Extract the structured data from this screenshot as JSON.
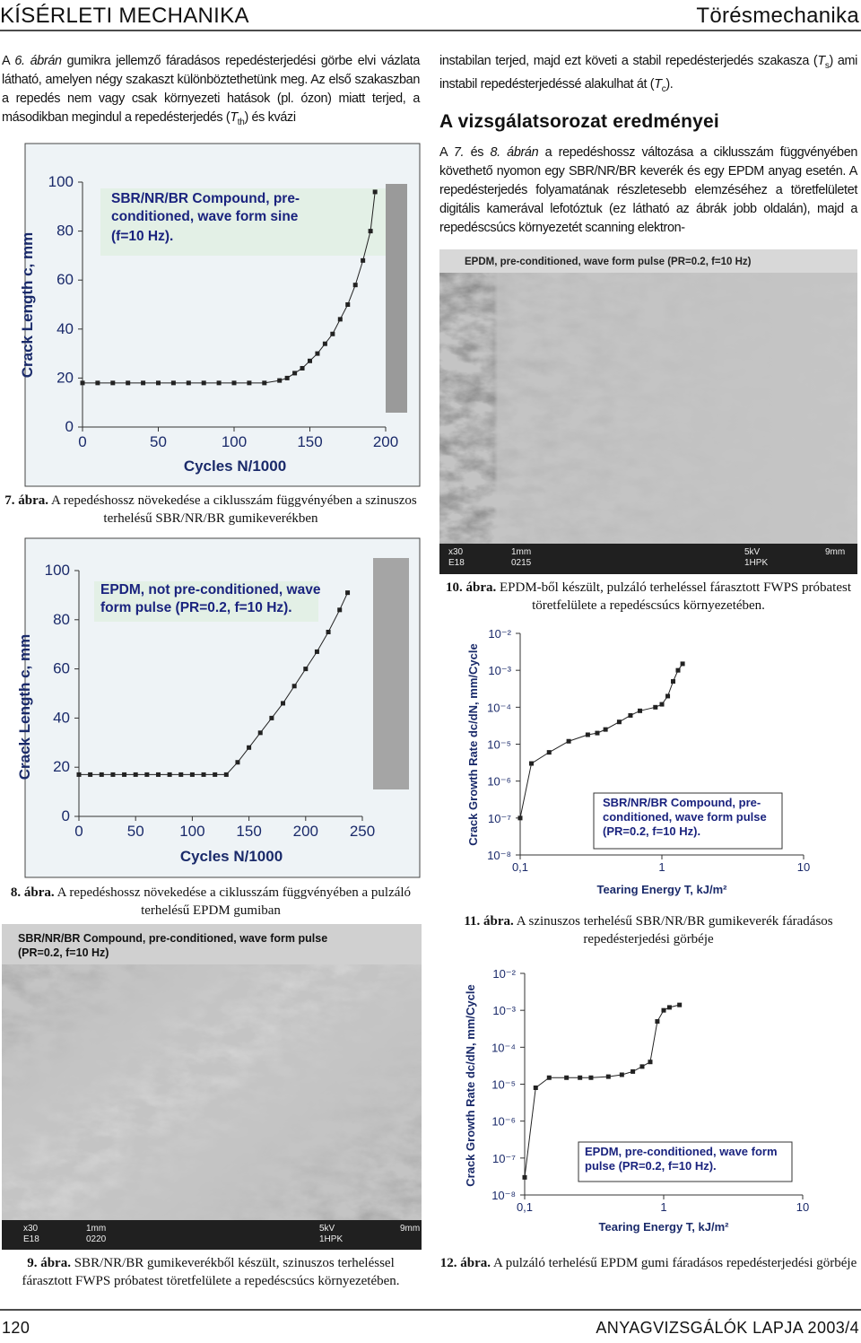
{
  "header": {
    "left": "KÍSÉRLETI MECHANIKA",
    "right": "Törésmechanika"
  },
  "left_text": [
    {
      "t": "A "
    },
    {
      "t": "6. ábrán",
      "s": "i"
    },
    {
      "t": " gumikra jellemző fáradásos repedésterjedési görbe elvi vázlata látható, amelyen négy szakaszt különböztethetünk meg. Az első szakaszban a repedés nem vagy csak környezeti hatások (pl. ózon) miatt terjed, a másodikban megindul a repedésterjedés ("
    },
    {
      "t": "T",
      "s": "i"
    },
    {
      "t": "th",
      "s": "sub"
    },
    {
      "t": ") és kvázi"
    }
  ],
  "right_text_1": [
    {
      "t": "instabilan terjed, majd ezt követi a stabil repedésterjedés szakasza ("
    },
    {
      "t": "T",
      "s": "i"
    },
    {
      "t": "s",
      "s": "sub"
    },
    {
      "t": ") ami instabil repedésterjedéssé alakulhat át ("
    },
    {
      "t": "T",
      "s": "i"
    },
    {
      "t": "c",
      "s": "sub"
    },
    {
      "t": ")."
    }
  ],
  "heading": "A vizsgálatsorozat eredményei",
  "right_text_2": [
    {
      "t": "A "
    },
    {
      "t": "7.",
      "s": "i"
    },
    {
      "t": " és "
    },
    {
      "t": "8. ábrán",
      "s": "i"
    },
    {
      "t": " a repedéshossz változása a ciklusszám függvényében követhető nyomon egy SBR/NR/BR keverék és egy EPDM anyag esetén. A repedésterjedés folyamatának részletesebb elemzéséhez a töretfelületet digitális kamerával lefotóztuk (ez látható az ábrák jobb oldalán), majd a repedéscsúcs környezetét scanning elektron-"
    }
  ],
  "figures": [
    {
      "caption_label": "7. ábra.",
      "caption_text": "A repedéshossz növekedése a ciklusszám függvényében a szinuszos terhelésű SBR/NR/BR gumikeverékben",
      "chart": {
        "type": "line",
        "legend_text": [
          "SBR/NR/BR Compound, pre-",
          "conditioned, wave form sine",
          "(f=10 Hz)."
        ],
        "x_label": "Cycles N/1000",
        "y_label": "Crack Length c, mm",
        "color": "#222222",
        "x": [
          0,
          10,
          20,
          30,
          40,
          50,
          60,
          70,
          80,
          90,
          100,
          110,
          120,
          130,
          135,
          140,
          145,
          150,
          155,
          160,
          165,
          170,
          175,
          180,
          185,
          190,
          193
        ],
        "values": [
          18,
          18,
          18,
          18,
          18,
          18,
          18,
          18,
          18,
          18,
          18,
          18,
          18,
          19,
          20,
          22,
          24,
          27,
          30,
          34,
          38,
          44,
          50,
          58,
          68,
          80,
          96
        ],
        "xlim": [
          0,
          200
        ],
        "ylim": [
          0,
          100
        ],
        "xticks": [
          0,
          50,
          100,
          150,
          200
        ],
        "yticks": [
          0,
          20,
          40,
          60,
          80,
          100
        ]
      }
    },
    {
      "caption_label": "8. ábra.",
      "caption_text": "A repedéshossz növekedése a ciklusszám függvényében a pulzáló terhelésű EPDM gumiban",
      "chart": {
        "type": "line",
        "legend_text": [
          "EPDM, not pre-conditioned, wave",
          "form pulse (PR=0.2, f=10 Hz)."
        ],
        "x_label": "Cycles N/1000",
        "y_label": "Crack Length c, mm",
        "color": "#222222",
        "x": [
          0,
          10,
          20,
          30,
          40,
          50,
          60,
          70,
          80,
          90,
          100,
          110,
          120,
          130,
          140,
          150,
          160,
          170,
          180,
          190,
          200,
          210,
          220,
          230,
          237
        ],
        "values": [
          17,
          17,
          17,
          17,
          17,
          17,
          17,
          17,
          17,
          17,
          17,
          17,
          17,
          17,
          22,
          28,
          34,
          40,
          46,
          53,
          60,
          67,
          75,
          84,
          91
        ],
        "xlim": [
          0,
          250
        ],
        "ylim": [
          0,
          100
        ],
        "xticks": [
          0,
          50,
          100,
          150,
          200,
          250
        ],
        "yticks": [
          0,
          20,
          40,
          60,
          80,
          100
        ]
      }
    },
    {
      "caption_label": "9. ábra.",
      "caption_text": "SBR/NR/BR gumikeverékből készült, szinuszos terheléssel fárasztott FWPS próbatest töretfelülete a repedéscsúcs környezetében.",
      "image_text": [
        "SBR/NR/BR Compound, pre-conditioned, wave form pulse",
        "(PR=0.2, f=10 Hz)"
      ],
      "image_footer": [
        "x30",
        "1mm",
        "5kV",
        "9mm",
        "E18",
        "0220",
        "1HPK"
      ]
    },
    {
      "caption_label": "10. ábra.",
      "caption_text": "EPDM-ből készült, pulzáló terheléssel fárasztott FWPS próbatest töretfelülete a repedéscsúcs környezetében.",
      "image_text": [
        "EPDM, pre-conditioned, wave form pulse (PR=0.2, f=10 Hz)"
      ],
      "image_footer": [
        "x30",
        "1mm",
        "5kV",
        "9mm",
        "E18",
        "0215",
        "1HPK"
      ]
    },
    {
      "caption_label": "11. ábra.",
      "caption_text": "A szinuszos terhelésű SBR/NR/BR gumikeverék fáradásos repedésterjedési görbéje",
      "chart": {
        "type": "line",
        "legend_text": [
          "SBR/NR/BR Compound, pre-",
          "conditioned, wave form pulse",
          "(PR=0.2, f=10 Hz)."
        ],
        "x_label": "Tearing Energy T, kJ/m²",
        "y_label": "Crack Growth Rate dc/dN, mm/Cycle",
        "color": "#222222",
        "xlog": true,
        "ylog": true,
        "x": [
          0.1,
          0.12,
          0.16,
          0.22,
          0.3,
          0.35,
          0.4,
          0.5,
          0.6,
          0.7,
          0.9,
          1.0,
          1.1,
          1.2,
          1.3,
          1.4
        ],
        "values": [
          1e-07,
          3e-06,
          6e-06,
          1.2e-05,
          1.8e-05,
          2e-05,
          2.5e-05,
          4e-05,
          6e-05,
          8e-05,
          0.0001,
          0.00012,
          0.0002,
          0.0005,
          0.001,
          0.0015
        ],
        "xlim": [
          0.1,
          10
        ],
        "ylim": [
          1e-08,
          0.01
        ],
        "xticks": [
          {
            "value": 0.1,
            "label": "0,1"
          },
          1,
          10
        ],
        "yticks": [
          {
            "value": 1e-08,
            "label": "10⁻⁸"
          },
          {
            "value": 1e-07,
            "label": "10⁻⁷"
          },
          {
            "value": 1e-06,
            "label": "10⁻⁶"
          },
          {
            "value": 1e-05,
            "label": "10⁻⁵"
          },
          {
            "value": 0.0001,
            "label": "10⁻⁴"
          },
          {
            "value": 0.001,
            "label": "10⁻³"
          },
          {
            "value": 0.01,
            "label": "10⁻²"
          }
        ]
      }
    },
    {
      "caption_label": "12. ábra.",
      "caption_text": "A pulzáló terhelésű EPDM gumi fáradásos repedésterjedési görbéje",
      "chart": {
        "type": "line",
        "legend_text": [
          "EPDM, pre-conditioned, wave form",
          "pulse (PR=0.2, f=10 Hz)."
        ],
        "x_label": "Tearing Energy T, kJ/m²",
        "y_label": "Crack Growth Rate dc/dN, mm/Cycle",
        "color": "#222222",
        "xlog": true,
        "ylog": true,
        "x": [
          0.1,
          0.12,
          0.15,
          0.2,
          0.25,
          0.3,
          0.4,
          0.5,
          0.6,
          0.7,
          0.8,
          0.9,
          1.0,
          1.1,
          1.3
        ],
        "values": [
          3e-08,
          8e-06,
          1.5e-05,
          1.5e-05,
          1.5e-05,
          1.5e-05,
          1.6e-05,
          1.8e-05,
          2.2e-05,
          3e-05,
          4e-05,
          0.0005,
          0.001,
          0.0012,
          0.0014
        ],
        "xlim": [
          0.1,
          10
        ],
        "ylim": [
          1e-08,
          0.01
        ],
        "xticks": [
          {
            "value": 0.1,
            "label": "0,1"
          },
          1,
          10
        ],
        "yticks": [
          {
            "value": 1e-08,
            "label": "10⁻⁸"
          },
          {
            "value": 1e-07,
            "label": "10⁻⁷"
          },
          {
            "value": 1e-06,
            "label": "10⁻⁶"
          },
          {
            "value": 1e-05,
            "label": "10⁻⁵"
          },
          {
            "value": 0.0001,
            "label": "10⁻⁴"
          },
          {
            "value": 0.001,
            "label": "10⁻³"
          },
          {
            "value": 0.01,
            "label": "10⁻²"
          }
        ]
      }
    }
  ],
  "footer": {
    "page": "120",
    "journal": "ANYAGVIZSGÁLÓK LAPJA 2003/4"
  }
}
